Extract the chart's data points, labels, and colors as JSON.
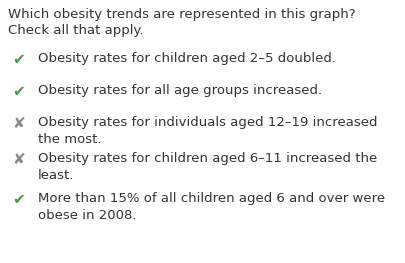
{
  "title_line1": "Which obesity trends are represented in this graph?",
  "title_line2": "Check all that apply.",
  "title_fontsize": 9.5,
  "title_color": "#333333",
  "background_color": "#ffffff",
  "items": [
    {
      "symbol": "✔",
      "symbol_color": "#4a9c4a",
      "text": "Obesity rates for children aged 2–5 doubled.",
      "multiline": false
    },
    {
      "symbol": "✔",
      "symbol_color": "#4a9c4a",
      "text": "Obesity rates for all age groups increased.",
      "multiline": false
    },
    {
      "symbol": "✘",
      "symbol_color": "#888888",
      "text": "Obesity rates for individuals aged 12–19 increased\nthe most.",
      "multiline": true
    },
    {
      "symbol": "✘",
      "symbol_color": "#888888",
      "text": "Obesity rates for children aged 6–11 increased the\nleast.",
      "multiline": true
    },
    {
      "symbol": "✔",
      "symbol_color": "#4a9c4a",
      "text": "More than 15% of all children aged 6 and over were\nobese in 2008.",
      "multiline": true
    }
  ],
  "text_color": "#333333",
  "text_fontsize": 9.5,
  "symbol_fontsize": 11.0
}
